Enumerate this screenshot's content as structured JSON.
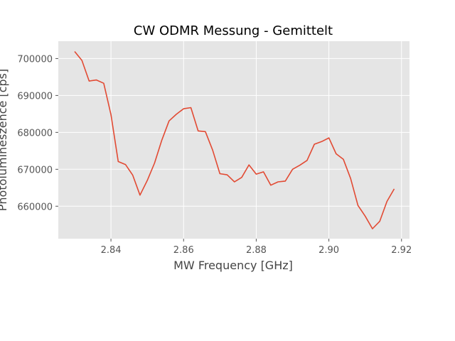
{
  "chart_data": {
    "type": "line",
    "title": "CW ODMR Messung - Gemittelt",
    "xlabel": "MW Frequency [GHz]",
    "ylabel": "Photolumineszence [cps]",
    "xlim": [
      2.8255,
      2.9222
    ],
    "ylim": [
      651200,
      704700
    ],
    "x_ticks": [
      2.84,
      2.86,
      2.88,
      2.9,
      2.92
    ],
    "x_tick_labels": [
      "2.84",
      "2.86",
      "2.88",
      "2.90",
      "2.92"
    ],
    "y_ticks": [
      660000,
      670000,
      680000,
      690000,
      700000
    ],
    "y_tick_labels": [
      "660000",
      "670000",
      "680000",
      "690000",
      "700000"
    ],
    "grid": true,
    "plot_background": "#e5e5e5",
    "series": [
      {
        "color": "#e24a33",
        "x": [
          2.83,
          2.832,
          2.834,
          2.836,
          2.838,
          2.84,
          2.842,
          2.844,
          2.846,
          2.848,
          2.85,
          2.852,
          2.854,
          2.856,
          2.858,
          2.86,
          2.862,
          2.864,
          2.866,
          2.868,
          2.87,
          2.872,
          2.874,
          2.876,
          2.878,
          2.88,
          2.882,
          2.884,
          2.886,
          2.888,
          2.89,
          2.892,
          2.894,
          2.896,
          2.898,
          2.9,
          2.902,
          2.904,
          2.906,
          2.908,
          2.91,
          2.912,
          2.914,
          2.916,
          2.918
        ],
        "y": [
          701900,
          699500,
          693900,
          694200,
          693300,
          684800,
          672100,
          671300,
          668400,
          663000,
          667000,
          671700,
          677900,
          683100,
          684900,
          686400,
          686700,
          680400,
          680200,
          675200,
          668800,
          668500,
          666600,
          667800,
          671200,
          668700,
          669300,
          665700,
          666600,
          666800,
          670000,
          671100,
          672400,
          676800,
          677500,
          678500,
          674200,
          672700,
          667500,
          660200,
          657300,
          653900,
          655900,
          661300,
          664700
        ]
      }
    ]
  }
}
